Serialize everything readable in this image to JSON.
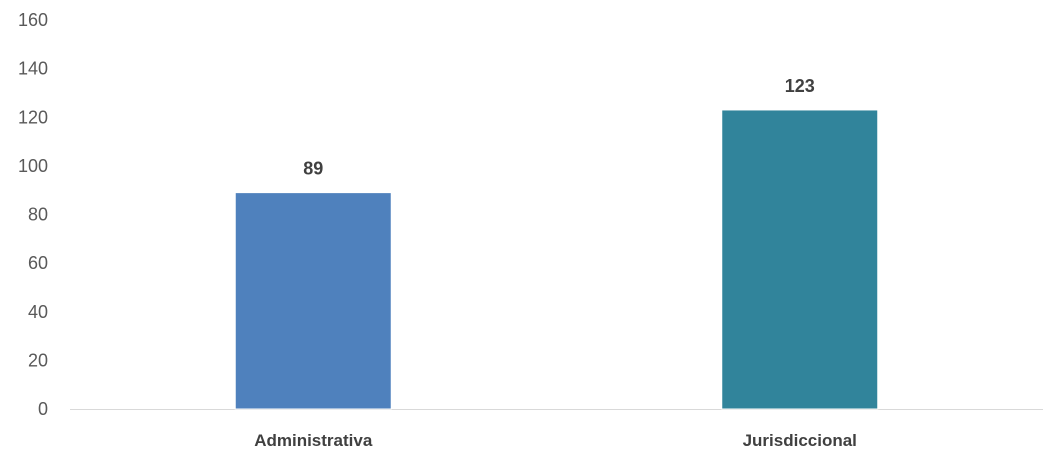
{
  "chart_data": {
    "type": "bar",
    "categories": [
      "Administrativa",
      "Jurisdiccional"
    ],
    "values": [
      89,
      123
    ],
    "data_labels": [
      "89",
      "123"
    ],
    "colors": [
      "#4f81bd",
      "#31849b"
    ],
    "ylim": [
      0,
      160
    ],
    "y_ticks": [
      0,
      20,
      40,
      60,
      80,
      100,
      120,
      140,
      160
    ],
    "y_tick_labels": [
      "0",
      "20",
      "40",
      "60",
      "80",
      "100",
      "120",
      "140",
      "160"
    ],
    "grid": false,
    "legend": "none",
    "title": "",
    "xlabel": "",
    "ylabel": ""
  }
}
